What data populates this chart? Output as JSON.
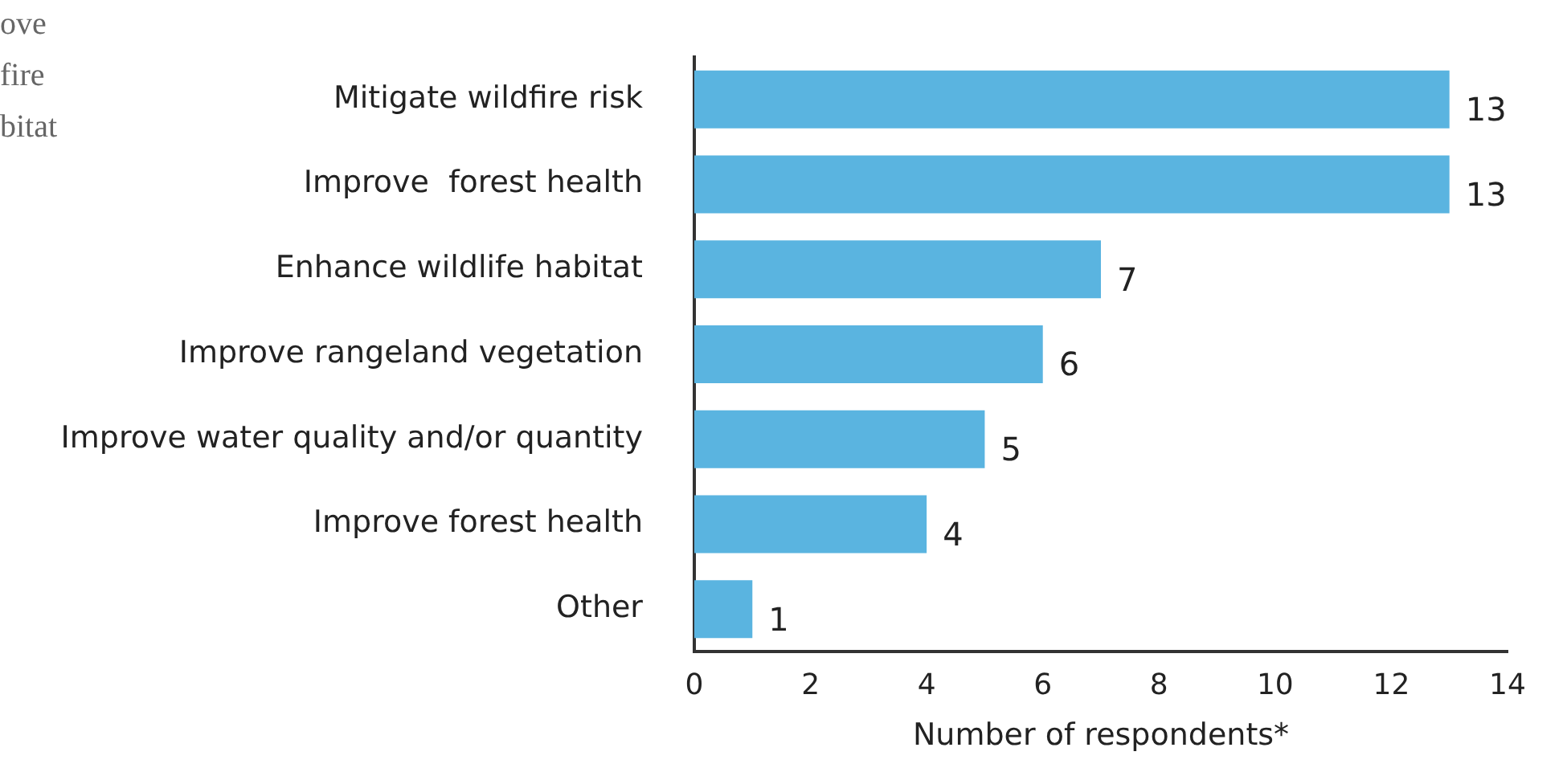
{
  "chart_data": {
    "type": "bar",
    "orientation": "horizontal",
    "xlabel": "Number of respondents*",
    "categories": [
      "Mitigate wildfire risk",
      "Improve  forest health",
      "Enhance wildlife habitat",
      "Improve rangeland vegetation",
      "Improve water quality and/or quantity",
      "Improve forest health",
      "Other"
    ],
    "values": [
      13,
      13,
      7,
      6,
      5,
      4,
      1
    ],
    "color": "#5ab4e0",
    "data_labels": true,
    "xlim": [
      0,
      14
    ],
    "xticks": [
      0,
      2,
      4,
      6,
      8,
      10,
      12,
      14
    ],
    "grid": false,
    "legend": false,
    "annotations": [
      "ove",
      "fire",
      "bitat"
    ]
  }
}
